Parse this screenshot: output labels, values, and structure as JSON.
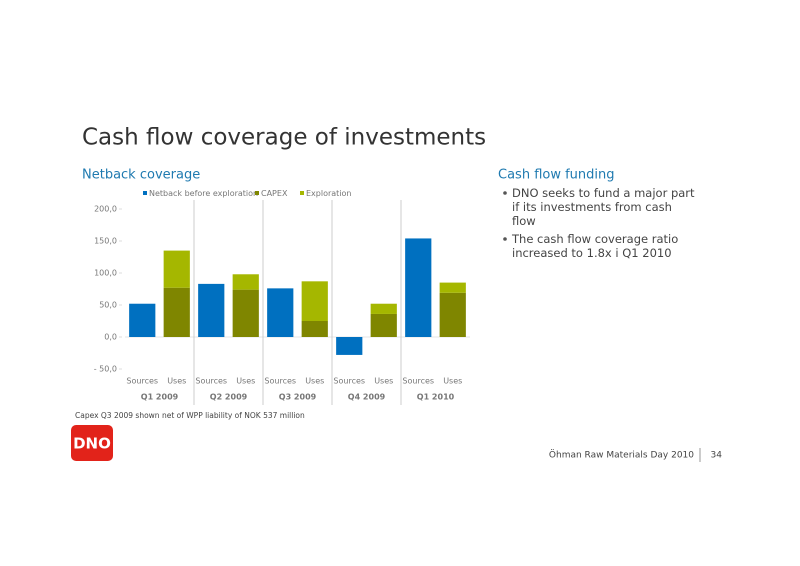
{
  "slide": {
    "title": "Cash flow coverage of investments",
    "right_heading": "Cash flow funding",
    "bullets": [
      "DNO seeks to fund a major part if its investments from cash flow",
      "The cash flow coverage ratio increased to 1.8x i Q1 2010"
    ],
    "footnote": "Capex Q3 2009 shown net of WPP liability of NOK 537 million",
    "logo": "DNO",
    "footer": "Öhman Raw Materials Day 2010",
    "page_number": "34"
  },
  "chart_data": {
    "type": "bar",
    "stacked": true,
    "title": "Netback coverage",
    "categories": [
      "Sources",
      "Uses",
      "Sources",
      "Uses",
      "Sources",
      "Uses",
      "Sources",
      "Uses",
      "Sources",
      "Uses"
    ],
    "groups": [
      "Q1 2009",
      "Q2 2009",
      "Q3 2009",
      "Q4 2009",
      "Q1 2010"
    ],
    "series": [
      {
        "name": "Netback before exploration",
        "color": "#0070c0",
        "values": [
          52,
          null,
          83,
          null,
          76,
          null,
          -28,
          null,
          154,
          null
        ]
      },
      {
        "name": "CAPEX",
        "color": "#7f8600",
        "values": [
          null,
          77,
          null,
          74,
          null,
          25,
          null,
          36,
          null,
          69
        ]
      },
      {
        "name": "Exploration",
        "color": "#a5b700",
        "values": [
          null,
          58,
          null,
          24,
          null,
          62,
          null,
          16,
          null,
          16
        ]
      }
    ],
    "ylim": [
      -50,
      200
    ],
    "yticks": [
      {
        "value": -50,
        "label": "- 50,0"
      },
      {
        "value": 0,
        "label": "0,0"
      },
      {
        "value": 50,
        "label": "50,0"
      },
      {
        "value": 100,
        "label": "100,0"
      },
      {
        "value": 150,
        "label": "150,0"
      },
      {
        "value": 200,
        "label": "200,0"
      }
    ],
    "legend": "top"
  }
}
